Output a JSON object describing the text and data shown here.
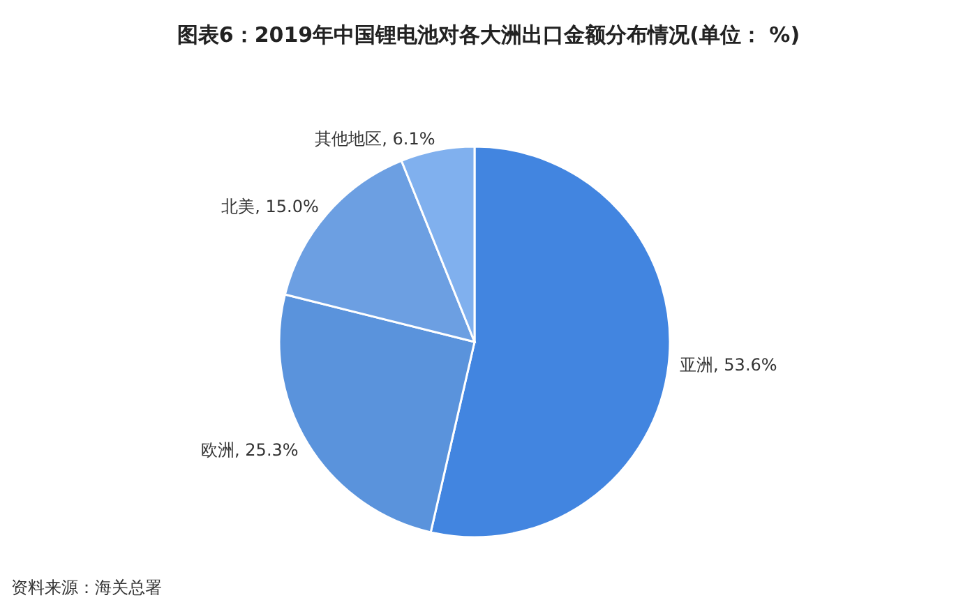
{
  "chart_data": {
    "type": "pie",
    "title": "图表6：2019年中国锂电池对各大洲出口金额分布情况(单位： %)",
    "categories": [
      "亚洲",
      "欧洲",
      "北美",
      "其他地区"
    ],
    "values": [
      53.6,
      25.3,
      15.0,
      6.1
    ],
    "value_labels": [
      "53.6%",
      "25.3%",
      "15.0%",
      "6.1%"
    ],
    "colors": [
      "#4285e0",
      "#5a93dc",
      "#6c9fe2",
      "#80b0ee"
    ],
    "annotations": [
      "资料来源：海关总署"
    ]
  }
}
